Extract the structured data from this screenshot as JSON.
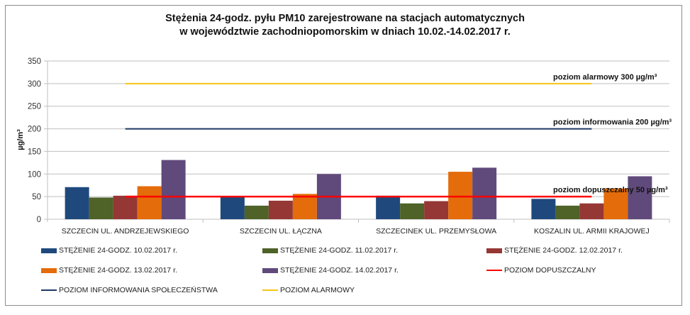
{
  "chart_data": {
    "type": "bar",
    "title": "Stężenia 24-godz. pyłu PM10 zarejestrowane na stacjach automatycznych w województwie zachodniopomorskim w dniach 10.02.-14.02.2017 r.",
    "title_lines": [
      "Stężenia 24-godz. pyłu PM10 zarejestrowane na stacjach automatycznych",
      "w województwie zachodniopomorskim w dniach 10.02.-14.02.2017 r."
    ],
    "xlabel": "",
    "ylabel": "µg/m³",
    "ylim": [
      0,
      350
    ],
    "yticks": [
      0,
      50,
      100,
      150,
      200,
      250,
      300,
      350
    ],
    "grid": true,
    "legend_position": "bottom",
    "categories": [
      "SZCZECIN UL. ANDRZEJEWSKIEGO",
      "SZCZECIN UL. ŁĄCZNA",
      "SZCZECINEK UL. PRZEMYSŁOWA",
      "KOSZALIN UL. ARMII KRAJOWEJ"
    ],
    "series": [
      {
        "name": "STĘŻENIE 24-GODZ. 10.02.2017 r.",
        "color": "#1f497d",
        "values": [
          71,
          49,
          52,
          45
        ]
      },
      {
        "name": "STĘŻENIE 24-GODZ. 11.02.2017 r.",
        "color": "#4f6228",
        "values": [
          48,
          30,
          35,
          30
        ]
      },
      {
        "name": "STĘŻENIE 24-GODZ. 12.02.2017 r.",
        "color": "#953735",
        "values": [
          52,
          41,
          40,
          35
        ]
      },
      {
        "name": "STĘŻENIE 24-GODZ. 13.02.2017 r.",
        "color": "#e46c0a",
        "values": [
          73,
          56,
          105,
          68
        ]
      },
      {
        "name": "STĘŻENIE 24-GODZ. 14.02.2017 r.",
        "color": "#604a7b",
        "values": [
          131,
          100,
          114,
          95
        ]
      }
    ],
    "reference_lines": [
      {
        "name": "POZIOM DOPUSZCZALNY",
        "value": 50,
        "color": "#ff0000",
        "annotation": "poziom dopuszczalny 50 µg/m³"
      },
      {
        "name": "POZIOM INFORMOWANIA SPOŁECZEŃSTWA",
        "value": 200,
        "color": "#1f3864",
        "annotation": "poziom informowania 200 µg/m³"
      },
      {
        "name": "POZIOM ALARMOWY",
        "value": 300,
        "color": "#f5c518",
        "annotation": "poziom alarmowy 300 µg/m³"
      }
    ],
    "legend_order": [
      {
        "label": "STĘŻENIE 24-GODZ. 10.02.2017 r.",
        "kind": "bar",
        "color": "#1f497d"
      },
      {
        "label": "STĘŻENIE 24-GODZ. 11.02.2017 r.",
        "kind": "bar",
        "color": "#4f6228"
      },
      {
        "label": "STĘŻENIE 24-GODZ. 12.02.2017 r.",
        "kind": "bar",
        "color": "#953735"
      },
      {
        "label": "STĘŻENIE 24-GODZ. 13.02.2017 r.",
        "kind": "bar",
        "color": "#e46c0a"
      },
      {
        "label": "STĘŻENIE 24-GODZ. 14.02.2017 r.",
        "kind": "bar",
        "color": "#604a7b"
      },
      {
        "label": "POZIOM DOPUSZCZALNY",
        "kind": "line",
        "color": "#ff0000"
      },
      {
        "label": "POZIOM INFORMOWANIA SPOŁECZEŃSTWA",
        "kind": "line",
        "color": "#1f3864"
      },
      {
        "label": "POZIOM ALARMOWY",
        "kind": "line",
        "color": "#f5c518"
      }
    ]
  }
}
